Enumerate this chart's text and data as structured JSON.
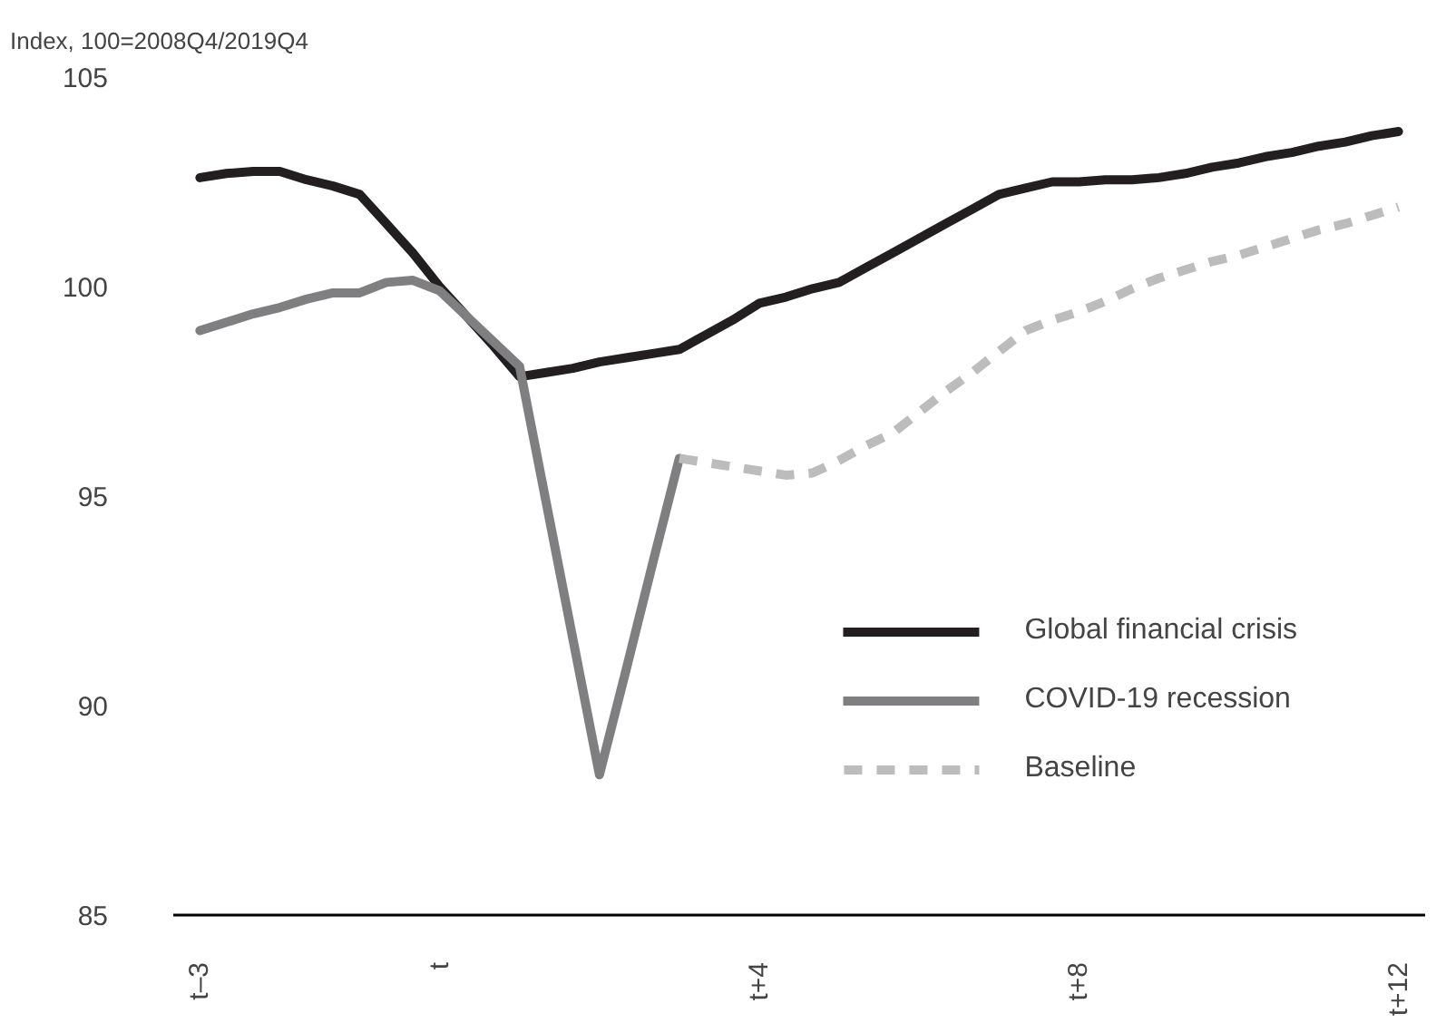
{
  "chart_data": {
    "type": "line",
    "title": "Index, 100=2008Q4/2019Q4",
    "categories": [
      "t–3",
      null,
      null,
      null,
      null,
      null,
      null,
      null,
      null,
      "t",
      null,
      null,
      null,
      null,
      null,
      null,
      null,
      null,
      null,
      null,
      null,
      "t+4",
      null,
      null,
      null,
      null,
      null,
      null,
      null,
      null,
      null,
      null,
      null,
      "t+8",
      null,
      null,
      null,
      null,
      null,
      null,
      null,
      null,
      null,
      null,
      null,
      "t+12"
    ],
    "ylim": [
      85,
      105
    ],
    "yticks": [
      85,
      90,
      95,
      100,
      105
    ],
    "grid": false,
    "legend": "bottom right",
    "series": [
      {
        "name": "Global financial crisis",
        "color": "#231f20",
        "line_style": "solid",
        "values": [
          102.6,
          102.7,
          102.75,
          102.75,
          102.55,
          102.4,
          102.2,
          101.5,
          100.8,
          100.0,
          99.3,
          98.6,
          97.85,
          97.95,
          98.05,
          98.2,
          98.3,
          98.4,
          98.5,
          98.85,
          99.2,
          99.6,
          99.75,
          99.95,
          100.1,
          100.45,
          100.8,
          101.15,
          101.5,
          101.85,
          102.2,
          102.35,
          102.5,
          102.5,
          102.55,
          102.55,
          102.6,
          102.7,
          102.85,
          102.95,
          103.1,
          103.2,
          103.35,
          103.45,
          103.6,
          103.7
        ]
      },
      {
        "name": "COVID-19 recession",
        "color": "#7f7f82",
        "line_style": "solid",
        "values": [
          98.95,
          99.15,
          99.35,
          99.5,
          99.7,
          99.85,
          99.85,
          100.1,
          100.15,
          99.9,
          99.3,
          98.7,
          98.1,
          94.85,
          91.6,
          88.35,
          90.85,
          93.4,
          95.9,
          null,
          null,
          null,
          null,
          null,
          null,
          null,
          null,
          null,
          null,
          null,
          null,
          null,
          null,
          null,
          null,
          null,
          null,
          null,
          null,
          null,
          null,
          null,
          null,
          null,
          null,
          null
        ]
      },
      {
        "name": "Baseline",
        "color": "#bcbcbc",
        "line_style": "dashed",
        "values": [
          null,
          null,
          null,
          null,
          null,
          null,
          null,
          null,
          null,
          null,
          null,
          null,
          null,
          null,
          null,
          null,
          null,
          null,
          95.9,
          95.8,
          95.7,
          95.6,
          95.5,
          95.55,
          95.85,
          96.2,
          96.5,
          97.0,
          97.5,
          97.95,
          98.45,
          98.95,
          99.2,
          99.4,
          99.65,
          99.95,
          100.2,
          100.4,
          100.6,
          100.75,
          100.95,
          101.15,
          101.35,
          101.5,
          101.7,
          101.9
        ]
      }
    ]
  }
}
